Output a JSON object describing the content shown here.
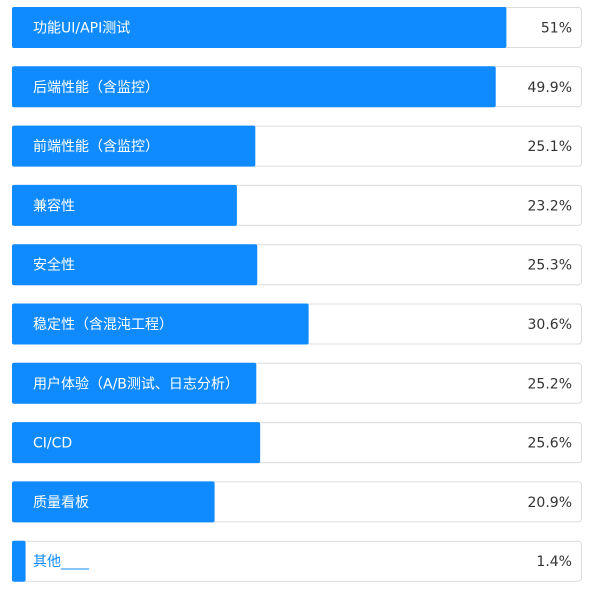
{
  "chart_data": {
    "type": "bar",
    "orientation": "horizontal",
    "categories": [
      "功能UI/API测试",
      "后端性能（含监控）",
      "前端性能（含监控）",
      "兼容性",
      "安全性",
      "稳定性（含混沌工程）",
      "用户体验（A/B测试、日志分析）",
      "CI/CD",
      "质量看板",
      "其他____"
    ],
    "values": [
      51,
      49.9,
      25.1,
      23.2,
      25.3,
      30.6,
      25.2,
      25.6,
      20.9,
      1.4
    ],
    "value_labels": [
      "51%",
      "49.9%",
      "25.1%",
      "23.2%",
      "25.3%",
      "30.6%",
      "25.2%",
      "25.6%",
      "20.9%",
      "1.4%"
    ],
    "color": "#0f8bff",
    "xlim": [
      0,
      58.8
    ]
  }
}
